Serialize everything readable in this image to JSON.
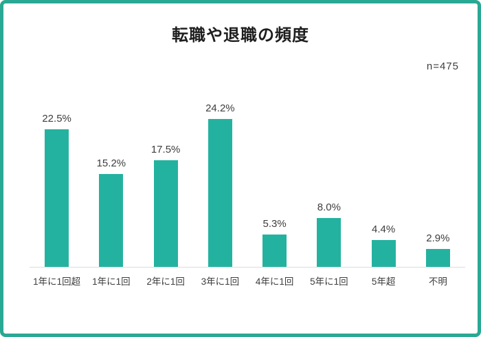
{
  "title": "転職や退職の頻度",
  "n_label": "n=475",
  "colors": {
    "accent": "#24b2a0",
    "frame_border": "#29a893",
    "axis_line": "#dcdcdc",
    "text": "#3d3d3d"
  },
  "chart_data": {
    "type": "bar",
    "title": "転職や退職の頻度",
    "sample_size_label": "n=475",
    "categories": [
      "1年に1回超",
      "1年に1回",
      "2年に1回",
      "3年に1回",
      "4年に1回",
      "5年に1回",
      "5年超",
      "不明"
    ],
    "values": [
      22.5,
      15.2,
      17.5,
      24.2,
      5.3,
      8.0,
      4.4,
      2.9
    ],
    "value_labels": [
      "22.5%",
      "15.2%",
      "17.5%",
      "24.2%",
      "5.3%",
      "8.0%",
      "4.4%",
      "2.9%"
    ],
    "xlabel": "",
    "ylabel": "",
    "ylim": [
      0,
      27
    ],
    "unit": "%",
    "grid": false,
    "legend_position": "none",
    "bar_color": "#24b2a0"
  }
}
